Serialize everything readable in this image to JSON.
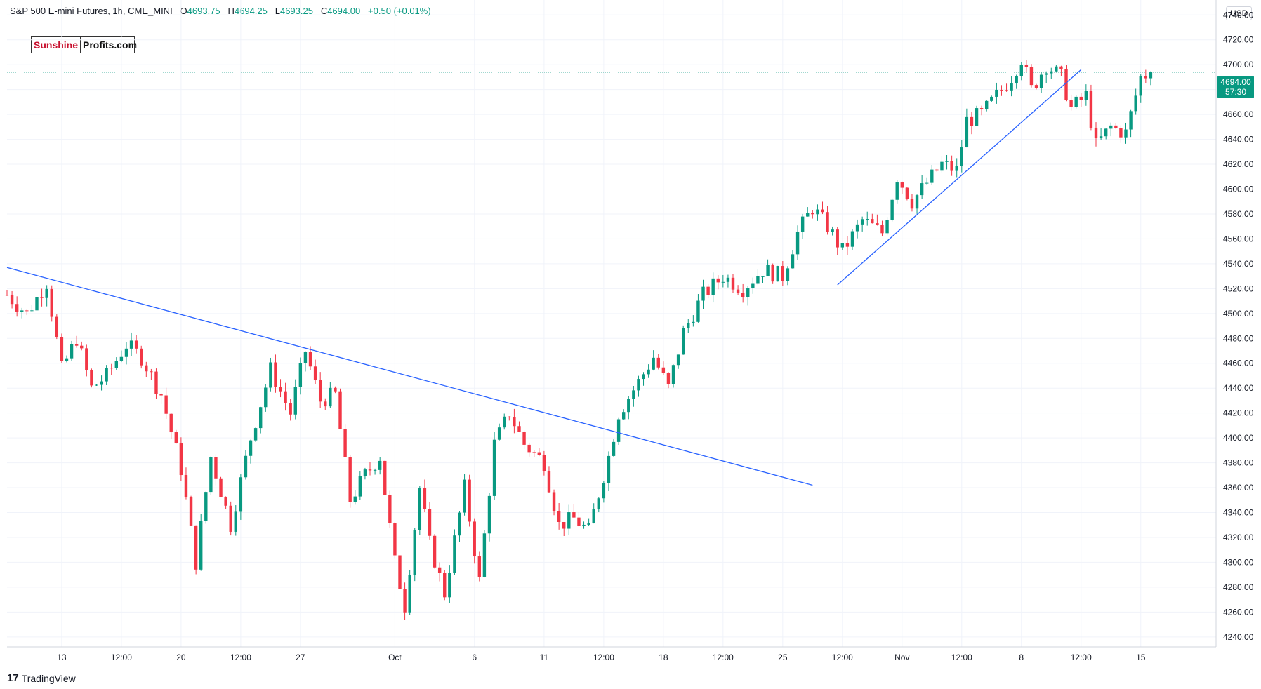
{
  "header": {
    "symbol": "S&P 500 E-mini Futures, 1h, CME_MINI",
    "open_label": "O",
    "open": "4693.75",
    "high_label": "H",
    "high": "4694.25",
    "low_label": "L",
    "low": "4693.25",
    "close_label": "C",
    "close": "4694.00",
    "change": "+0.50 (+0.01%)"
  },
  "logo": {
    "part1": "Sunshine",
    "part2": "Profits.com"
  },
  "currency": "USD",
  "price_badge": {
    "price": "4694.00",
    "countdown": "57:30"
  },
  "footer": {
    "brand": "TradingView",
    "brand_mark": "17"
  },
  "colors": {
    "up": "#089981",
    "down": "#f23645",
    "trendline": "#2962ff",
    "grid": "#f0f3fa"
  },
  "chart_data": {
    "type": "candlestick",
    "ylim": [
      4232,
      4752
    ],
    "y_ticks": [
      4240,
      4260,
      4280,
      4300,
      4320,
      4340,
      4360,
      4380,
      4400,
      4420,
      4440,
      4460,
      4480,
      4500,
      4520,
      4540,
      4560,
      4580,
      4600,
      4620,
      4640,
      4660,
      4680,
      4700,
      4720,
      4740
    ],
    "y_tick_labels": [
      "4240.00",
      "4260.00",
      "4280.00",
      "4300.00",
      "4320.00",
      "4340.00",
      "4360.00",
      "4380.00",
      "4400.00",
      "4420.00",
      "4440.00",
      "4460.00",
      "4480.00",
      "4500.00",
      "4520.00",
      "4540.00",
      "4560.00",
      "4580.00",
      "4600.00",
      "4620.00",
      "4640.00",
      "4660.00",
      "4680.00",
      "4700.00",
      "4720.00",
      "4740.00"
    ],
    "x_ticks": [
      {
        "i": 11,
        "label": "13"
      },
      {
        "i": 23,
        "label": "12:00"
      },
      {
        "i": 35,
        "label": "20"
      },
      {
        "i": 47,
        "label": "12:00"
      },
      {
        "i": 59,
        "label": "27"
      },
      {
        "i": 78,
        "label": "Oct"
      },
      {
        "i": 94,
        "label": "6"
      },
      {
        "i": 108,
        "label": "11"
      },
      {
        "i": 120,
        "label": "12:00"
      },
      {
        "i": 132,
        "label": "18"
      },
      {
        "i": 144,
        "label": "12:00"
      },
      {
        "i": 156,
        "label": "25"
      },
      {
        "i": 168,
        "label": "12:00"
      },
      {
        "i": 180,
        "label": "Nov"
      },
      {
        "i": 192,
        "label": "12:00"
      },
      {
        "i": 204,
        "label": "8"
      },
      {
        "i": 216,
        "label": "12:00"
      },
      {
        "i": 228,
        "label": "15"
      }
    ],
    "anchors": [
      [
        0,
        4515
      ],
      [
        4,
        4500
      ],
      [
        8,
        4525
      ],
      [
        11,
        4455
      ],
      [
        14,
        4480
      ],
      [
        17,
        4440
      ],
      [
        20,
        4450
      ],
      [
        24,
        4475
      ],
      [
        27,
        4465
      ],
      [
        31,
        4435
      ],
      [
        35,
        4375
      ],
      [
        38,
        4300
      ],
      [
        41,
        4385
      ],
      [
        45,
        4330
      ],
      [
        49,
        4400
      ],
      [
        53,
        4455
      ],
      [
        57,
        4420
      ],
      [
        60,
        4470
      ],
      [
        63,
        4430
      ],
      [
        66,
        4435
      ],
      [
        69,
        4350
      ],
      [
        72,
        4370
      ],
      [
        75,
        4385
      ],
      [
        78,
        4300
      ],
      [
        80,
        4265
      ],
      [
        83,
        4360
      ],
      [
        85,
        4315
      ],
      [
        88,
        4275
      ],
      [
        92,
        4360
      ],
      [
        95,
        4285
      ],
      [
        98,
        4395
      ],
      [
        101,
        4420
      ],
      [
        104,
        4395
      ],
      [
        108,
        4380
      ],
      [
        111,
        4330
      ],
      [
        114,
        4335
      ],
      [
        117,
        4325
      ],
      [
        121,
        4385
      ],
      [
        123,
        4420
      ],
      [
        127,
        4445
      ],
      [
        130,
        4465
      ],
      [
        133,
        4440
      ],
      [
        136,
        4485
      ],
      [
        140,
        4515
      ],
      [
        144,
        4530
      ],
      [
        148,
        4520
      ],
      [
        152,
        4535
      ],
      [
        156,
        4530
      ],
      [
        159,
        4565
      ],
      [
        162,
        4585
      ],
      [
        165,
        4570
      ],
      [
        168,
        4550
      ],
      [
        172,
        4575
      ],
      [
        176,
        4565
      ],
      [
        179,
        4610
      ],
      [
        182,
        4590
      ],
      [
        185,
        4605
      ],
      [
        188,
        4620
      ],
      [
        191,
        4615
      ],
      [
        193,
        4655
      ],
      [
        196,
        4660
      ],
      [
        199,
        4675
      ],
      [
        202,
        4690
      ],
      [
        204,
        4705
      ],
      [
        206,
        4680
      ],
      [
        209,
        4700
      ],
      [
        212,
        4690
      ],
      [
        214,
        4665
      ],
      [
        217,
        4675
      ],
      [
        219,
        4635
      ],
      [
        222,
        4650
      ],
      [
        225,
        4645
      ],
      [
        228,
        4690
      ],
      [
        230,
        4694
      ]
    ],
    "trendlines": [
      {
        "start": [
          0,
          4537
        ],
        "end": [
          162,
          4362
        ]
      },
      {
        "start": [
          167,
          4523
        ],
        "end": [
          216,
          4696
        ]
      }
    ],
    "last_price": 4694.0
  }
}
